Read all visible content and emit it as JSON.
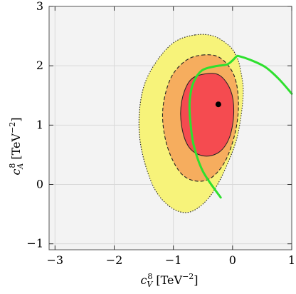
{
  "chart_data": {
    "type": "contour",
    "xlabel": {
      "base": "c",
      "sup": "8",
      "sub": "V",
      "unit_pre": "[TeV",
      "unit_exp": "−2",
      "unit_post": "]"
    },
    "ylabel": {
      "base": "c",
      "sup": "8",
      "sub": "A",
      "unit_pre": "[TeV",
      "unit_exp": "−2",
      "unit_post": "]"
    },
    "xlim": [
      -3.1,
      1.0
    ],
    "ylim": [
      -1.1,
      3.0
    ],
    "x_ticks": [
      -3,
      -2,
      -1,
      0,
      1
    ],
    "x_tick_labels": [
      "−3",
      "−2",
      "−1",
      "0",
      "1"
    ],
    "y_ticks": [
      -1,
      0,
      1,
      2,
      3
    ],
    "y_tick_labels": [
      "−1",
      "0",
      "1",
      "2",
      "3"
    ],
    "grid": true,
    "colors": {
      "background": "#f3f3f3",
      "grid": "#d9d9d9",
      "outer_region": "#f7f37a",
      "middle_region": "#f6ad5e",
      "inner_region": "#f54b50",
      "curve": "#2ee02e",
      "best_fit": "#000000"
    },
    "best_fit": {
      "x": -0.24,
      "y": 1.35
    },
    "regions": [
      {
        "level": "outer",
        "border": "dotted",
        "points": [
          [
            -0.63,
            2.52
          ],
          [
            -0.32,
            2.5
          ],
          [
            -0.05,
            2.33
          ],
          [
            0.08,
            2.13
          ],
          [
            0.14,
            1.9
          ],
          [
            0.18,
            1.6
          ],
          [
            0.15,
            1.2
          ],
          [
            0.05,
            0.7
          ],
          [
            -0.2,
            0.1
          ],
          [
            -0.45,
            -0.28
          ],
          [
            -0.75,
            -0.47
          ],
          [
            -1.05,
            -0.38
          ],
          [
            -1.33,
            -0.05
          ],
          [
            -1.53,
            0.55
          ],
          [
            -1.58,
            1.1
          ],
          [
            -1.5,
            1.65
          ],
          [
            -1.28,
            2.08
          ],
          [
            -0.98,
            2.4
          ]
        ]
      },
      {
        "level": "middle",
        "border": "dashed",
        "points": [
          [
            -0.52,
            2.18
          ],
          [
            -0.22,
            2.14
          ],
          [
            0.02,
            1.85
          ],
          [
            0.1,
            1.4
          ],
          [
            0.05,
            0.9
          ],
          [
            -0.12,
            0.4
          ],
          [
            -0.38,
            0.1
          ],
          [
            -0.68,
            0.07
          ],
          [
            -0.92,
            0.25
          ],
          [
            -1.12,
            0.7
          ],
          [
            -1.18,
            1.25
          ],
          [
            -1.05,
            1.78
          ],
          [
            -0.8,
            2.08
          ]
        ]
      },
      {
        "level": "inner",
        "border": "solid",
        "points": [
          [
            -0.48,
            1.86
          ],
          [
            -0.22,
            1.84
          ],
          [
            -0.03,
            1.58
          ],
          [
            0.02,
            1.2
          ],
          [
            -0.05,
            0.8
          ],
          [
            -0.22,
            0.55
          ],
          [
            -0.48,
            0.48
          ],
          [
            -0.73,
            0.62
          ],
          [
            -0.86,
            0.98
          ],
          [
            -0.86,
            1.4
          ],
          [
            -0.72,
            1.75
          ]
        ]
      }
    ],
    "curve": {
      "points": [
        [
          -0.2,
          -0.22
        ],
        [
          -0.5,
          0.22
        ],
        [
          -0.66,
          0.68
        ],
        [
          -0.72,
          1.15
        ],
        [
          -0.72,
          1.45
        ],
        [
          -0.66,
          1.72
        ],
        [
          -0.52,
          1.92
        ],
        [
          -0.3,
          1.99
        ],
        [
          -0.1,
          2.02
        ],
        [
          0.0,
          2.09
        ],
        [
          0.07,
          2.16
        ],
        [
          0.12,
          2.16
        ],
        [
          0.3,
          2.1
        ],
        [
          0.55,
          1.98
        ],
        [
          0.78,
          1.78
        ],
        [
          1.0,
          1.53
        ]
      ]
    }
  }
}
